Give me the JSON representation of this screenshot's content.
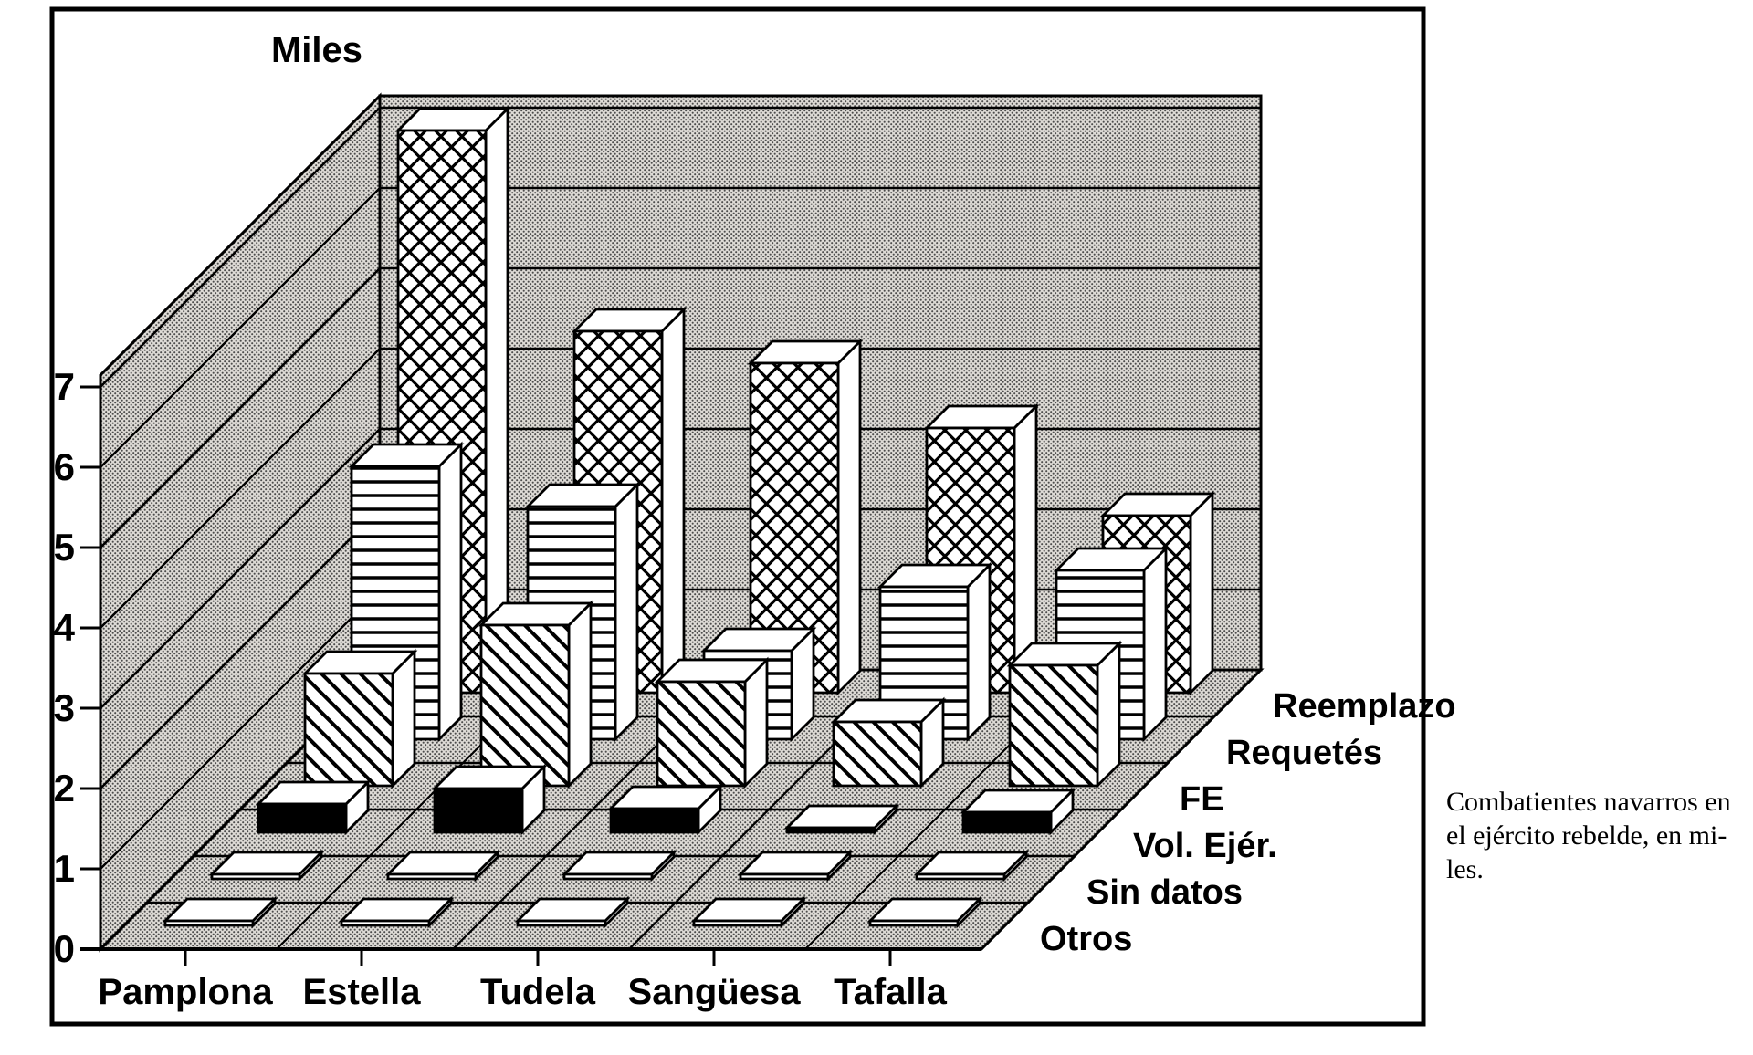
{
  "figure": {
    "caption_lines": [
      "Combatientes navarros en",
      "el ejército rebelde, en mi-",
      "les."
    ],
    "border_color": "#000000",
    "background_color": "#ffffff",
    "ink_color": "#000000",
    "wall_tone": "#dedbd6"
  },
  "chart_data": {
    "type": "bar",
    "subtype": "3d-bar-grid",
    "title": "Miles",
    "ylabel": "Miles",
    "xlabel": "",
    "ylim": [
      0,
      7
    ],
    "ytick_labels": [
      "0",
      "1",
      "2",
      "3",
      "4",
      "5",
      "6",
      "7"
    ],
    "grid": true,
    "legend_position": "right-diagonal",
    "categories": [
      "Pamplona",
      "Estella",
      "Tudela",
      "Sangüesa",
      "Tafalla"
    ],
    "series": [
      {
        "name": "Reemplazo",
        "pattern": "crosshatch",
        "values": [
          7.0,
          4.5,
          4.1,
          3.3,
          2.2
        ]
      },
      {
        "name": "Requetés",
        "pattern": "horizontal-lines",
        "values": [
          3.4,
          2.9,
          1.1,
          1.9,
          2.1
        ]
      },
      {
        "name": "FE",
        "pattern": "diagonal-lines",
        "values": [
          1.4,
          2.0,
          1.3,
          0.8,
          1.5
        ]
      },
      {
        "name": "Vol. Ejér.",
        "pattern": "solid-black",
        "values": [
          0.35,
          0.55,
          0.3,
          0.05,
          0.25
        ]
      },
      {
        "name": "Sin datos",
        "pattern": "flat-tile",
        "values": [
          0,
          0,
          0,
          0,
          0
        ]
      },
      {
        "name": "Otros",
        "pattern": "flat-tile",
        "values": [
          0,
          0,
          0,
          0,
          0
        ]
      }
    ]
  }
}
